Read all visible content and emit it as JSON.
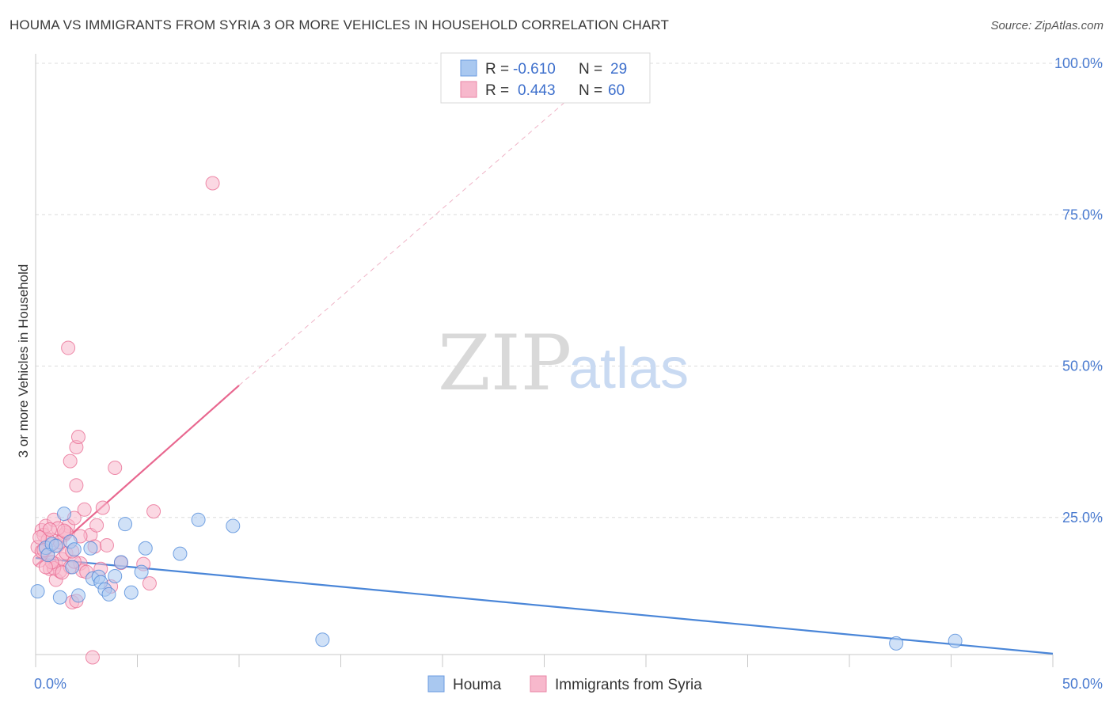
{
  "header": {
    "title": "HOUMA VS IMMIGRANTS FROM SYRIA 3 OR MORE VEHICLES IN HOUSEHOLD CORRELATION CHART",
    "source": "Source: ZipAtlas.com"
  },
  "watermark": {
    "zip": "ZIP",
    "atlas": "atlas"
  },
  "legend_box": {
    "rows": [
      {
        "r_label": "R =",
        "r_value": "-0.610",
        "n_label": "N =",
        "n_value": "29",
        "color": "#a9c8f0"
      },
      {
        "r_label": "R =",
        "r_value": "0.443",
        "n_label": "N =",
        "n_value": "60",
        "color": "#f7b8cc"
      }
    ]
  },
  "bottom_legend": [
    {
      "label": "Houma",
      "color": "#a9c8f0"
    },
    {
      "label": "Immigrants from Syria",
      "color": "#f7b8cc"
    }
  ],
  "chart_data": {
    "type": "scatter",
    "title": "HOUMA VS IMMIGRANTS FROM SYRIA 3 OR MORE VEHICLES IN HOUSEHOLD CORRELATION CHART",
    "xlabel": "",
    "ylabel": "3 or more Vehicles in Household",
    "xlim": [
      0,
      50
    ],
    "ylim": [
      0,
      100
    ],
    "x_tick_labels": [
      "0.0%",
      "50.0%"
    ],
    "y_tick_labels": [
      "25.0%",
      "50.0%",
      "75.0%",
      "100.0%"
    ],
    "y_ticks": [
      25,
      50,
      75,
      100
    ],
    "grid": true,
    "legend_position": "top-center",
    "series": [
      {
        "name": "Houma",
        "color": "#4a86d8",
        "fill": "#a9c8f0",
        "r": -0.61,
        "n": 29,
        "trend": {
          "x": [
            0,
            50
          ],
          "y": [
            18.3,
            2.5
          ],
          "dashed_extension": false
        },
        "points": [
          [
            0.1,
            12.8
          ],
          [
            0.5,
            20.0
          ],
          [
            0.8,
            20.6
          ],
          [
            1.2,
            11.8
          ],
          [
            1.4,
            25.6
          ],
          [
            1.7,
            21.0
          ],
          [
            1.8,
            16.8
          ],
          [
            1.9,
            19.7
          ],
          [
            2.1,
            12.1
          ],
          [
            2.7,
            19.9
          ],
          [
            2.8,
            14.9
          ],
          [
            3.1,
            15.2
          ],
          [
            3.2,
            14.3
          ],
          [
            3.4,
            13.1
          ],
          [
            3.6,
            12.3
          ],
          [
            3.9,
            15.3
          ],
          [
            4.2,
            17.6
          ],
          [
            4.4,
            23.9
          ],
          [
            4.7,
            12.6
          ],
          [
            5.2,
            16.0
          ],
          [
            5.4,
            19.9
          ],
          [
            7.1,
            19.0
          ],
          [
            8.0,
            24.6
          ],
          [
            9.7,
            23.6
          ],
          [
            14.1,
            4.8
          ],
          [
            42.3,
            4.2
          ],
          [
            45.2,
            4.6
          ],
          [
            0.6,
            18.8
          ],
          [
            1.0,
            20.3
          ]
        ]
      },
      {
        "name": "Immigrants from Syria",
        "color": "#e8678f",
        "fill": "#f7b8cc",
        "r": 0.443,
        "n": 60,
        "trend": {
          "x": [
            0,
            10.0
          ],
          "y": [
            17.0,
            46.8
          ],
          "dashed_to": [
            26.5,
            95.0
          ]
        },
        "points": [
          [
            0.1,
            20.1
          ],
          [
            0.2,
            17.9
          ],
          [
            0.3,
            22.9
          ],
          [
            0.3,
            19.4
          ],
          [
            0.4,
            22.1
          ],
          [
            0.5,
            23.6
          ],
          [
            0.6,
            18.8
          ],
          [
            0.7,
            16.5
          ],
          [
            0.8,
            21.3
          ],
          [
            0.9,
            24.6
          ],
          [
            1.0,
            17.3
          ],
          [
            1.0,
            14.7
          ],
          [
            1.1,
            20.4
          ],
          [
            1.2,
            16.1
          ],
          [
            1.3,
            18.1
          ],
          [
            1.4,
            22.1
          ],
          [
            1.5,
            19.1
          ],
          [
            1.6,
            23.6
          ],
          [
            1.6,
            53.0
          ],
          [
            1.7,
            16.8
          ],
          [
            1.8,
            11.0
          ],
          [
            1.9,
            24.9
          ],
          [
            2.0,
            11.2
          ],
          [
            2.0,
            30.3
          ],
          [
            2.0,
            36.6
          ],
          [
            2.1,
            38.3
          ],
          [
            2.2,
            17.4
          ],
          [
            2.3,
            16.2
          ],
          [
            2.4,
            26.3
          ],
          [
            2.7,
            22.1
          ],
          [
            2.8,
            1.9
          ],
          [
            2.9,
            20.2
          ],
          [
            3.0,
            23.7
          ],
          [
            3.2,
            16.5
          ],
          [
            3.3,
            26.6
          ],
          [
            3.5,
            20.4
          ],
          [
            3.7,
            13.6
          ],
          [
            3.9,
            33.2
          ],
          [
            4.2,
            17.5
          ],
          [
            5.3,
            17.3
          ],
          [
            5.6,
            14.1
          ],
          [
            5.8,
            26.0
          ],
          [
            8.7,
            80.2
          ],
          [
            1.7,
            34.3
          ],
          [
            0.9,
            16.6
          ],
          [
            1.2,
            20.9
          ],
          [
            1.5,
            22.5
          ],
          [
            0.6,
            21.3
          ],
          [
            0.4,
            19.6
          ],
          [
            2.5,
            16.0
          ],
          [
            1.1,
            23.2
          ],
          [
            0.8,
            17.6
          ],
          [
            1.3,
            15.9
          ],
          [
            1.9,
            17.7
          ],
          [
            0.2,
            21.7
          ],
          [
            0.7,
            23.0
          ],
          [
            1.4,
            22.8
          ],
          [
            2.2,
            21.9
          ],
          [
            1.8,
            19.4
          ],
          [
            0.5,
            16.8
          ]
        ]
      }
    ]
  }
}
